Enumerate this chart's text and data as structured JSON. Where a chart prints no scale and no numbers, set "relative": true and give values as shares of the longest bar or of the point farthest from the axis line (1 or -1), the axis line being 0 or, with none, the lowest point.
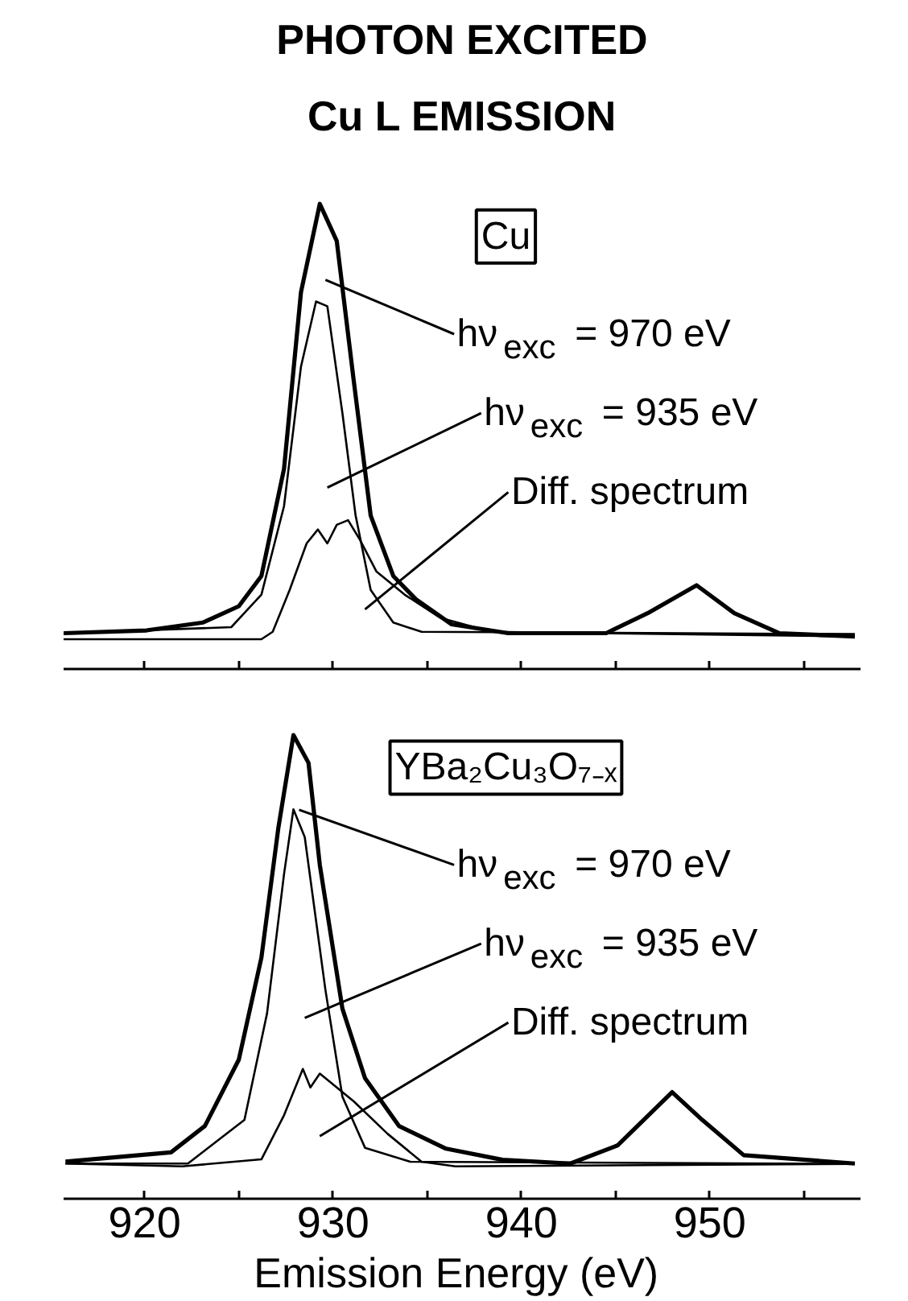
{
  "chart_data": [
    {
      "type": "line",
      "title": "PHOTON EXCITED\nCu L EMISSION",
      "relative": true,
      "tick_labels": false,
      "grid": false,
      "marker": "none",
      "line_style": "solid",
      "xlim": [
        915.7,
        958.0
      ],
      "xticks": [
        920,
        925,
        930,
        935,
        940,
        945,
        950,
        955
      ],
      "annotations": [
        "Cu",
        "hν$_{exc}$ = 970 eV",
        "hν$_{exc}$ = 935 eV",
        "Diff. spectrum"
      ],
      "series": [
        {
          "color": "#000000",
          "x": [
            915.7,
            920.1,
            923.1,
            925.0,
            926.2,
            927.4,
            928.3,
            929.3,
            930.2,
            931.1,
            932.0,
            933.2,
            934.4,
            936.3,
            939.3,
            944.5,
            946.7,
            949.3,
            951.3,
            953.7,
            957.7
          ],
          "values": [
            0.077,
            0.083,
            0.1,
            0.135,
            0.2,
            0.43,
            0.81,
            1.0,
            0.92,
            0.62,
            0.33,
            0.2,
            0.15,
            0.096,
            0.077,
            0.077,
            0.12,
            0.18,
            0.12,
            0.077,
            0.07
          ]
        },
        {
          "color": "#000000",
          "x": [
            915.7,
            924.6,
            926.2,
            927.4,
            928.3,
            929.1,
            929.7,
            930.5,
            931.2,
            932.0,
            933.2,
            934.7,
            957.7
          ],
          "values": [
            0.077,
            0.09,
            0.16,
            0.35,
            0.65,
            0.79,
            0.78,
            0.55,
            0.33,
            0.17,
            0.1,
            0.08,
            0.075
          ]
        },
        {
          "color": "#000000",
          "x": [
            915.7,
            926.2,
            926.8,
            927.7,
            928.6,
            929.2,
            929.7,
            930.2,
            930.8,
            931.4,
            932.3,
            933.8,
            935.7,
            938.4,
            957.7
          ],
          "values": [
            0.064,
            0.064,
            0.08,
            0.17,
            0.27,
            0.3,
            0.27,
            0.31,
            0.32,
            0.28,
            0.21,
            0.16,
            0.11,
            0.08,
            0.07
          ]
        }
      ]
    },
    {
      "type": "line",
      "xlabel": "Emission Energy  (eV)",
      "relative": true,
      "grid": false,
      "marker": "none",
      "line_style": "solid",
      "xlim": [
        915.7,
        958.0
      ],
      "xticks": [
        920,
        {
          "value": 925,
          "label": null
        },
        930,
        {
          "value": 935,
          "label": null
        },
        940,
        {
          "value": 945,
          "label": null
        },
        950,
        {
          "value": 955,
          "label": null
        }
      ],
      "annotations": [
        "YBa₂Cu₃O₇₋ₓ",
        "hν$_{exc}$ = 970 eV",
        "hν$_{exc}$ = 935 eV",
        "Diff. spectrum"
      ],
      "series": [
        {
          "color": "#000000",
          "x": [
            915.8,
            921.4,
            923.2,
            925.0,
            926.2,
            927.1,
            927.9,
            928.7,
            929.3,
            930.5,
            931.7,
            933.5,
            936.0,
            939.0,
            942.6,
            945.1,
            948.0,
            949.6,
            951.8,
            957.7
          ],
          "values": [
            0.08,
            0.1,
            0.157,
            0.3,
            0.52,
            0.8,
            1.0,
            0.94,
            0.72,
            0.41,
            0.26,
            0.157,
            0.108,
            0.084,
            0.076,
            0.115,
            0.23,
            0.17,
            0.094,
            0.076
          ]
        },
        {
          "color": "#000000",
          "x": [
            915.8,
            922.3,
            925.3,
            926.5,
            927.4,
            927.9,
            928.5,
            929.6,
            930.5,
            931.7,
            934.1,
            957.7
          ],
          "values": [
            0.076,
            0.076,
            0.17,
            0.4,
            0.7,
            0.84,
            0.78,
            0.45,
            0.22,
            0.11,
            0.08,
            0.075
          ]
        },
        {
          "color": "#000000",
          "x": [
            915.8,
            922.0,
            926.2,
            927.4,
            928.4,
            928.8,
            929.3,
            930.2,
            931.1,
            932.9,
            934.7,
            936.5,
            957.7
          ],
          "values": [
            0.076,
            0.07,
            0.085,
            0.18,
            0.28,
            0.24,
            0.27,
            0.24,
            0.21,
            0.14,
            0.08,
            0.07,
            0.075
          ]
        }
      ]
    }
  ]
}
